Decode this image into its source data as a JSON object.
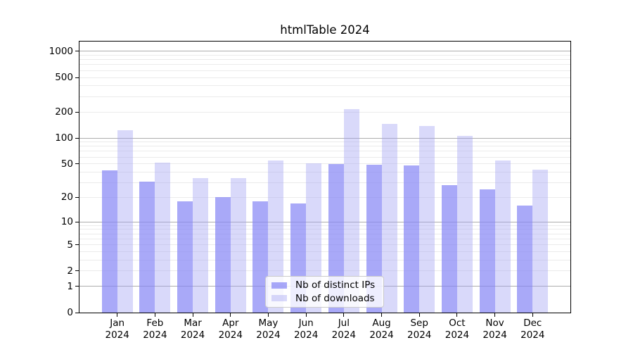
{
  "chart_data": {
    "type": "bar",
    "title": "htmlTable 2024",
    "categories": [
      "Jan",
      "Feb",
      "Mar",
      "Apr",
      "May",
      "Jun",
      "Jul",
      "Aug",
      "Sep",
      "Oct",
      "Nov",
      "Dec"
    ],
    "category_year": "2024",
    "series": [
      {
        "name": "Nb of distinct IPs",
        "color": "#8484f5",
        "alpha": 0.7,
        "values": [
          42,
          31,
          18,
          20,
          18,
          17,
          50,
          49,
          48,
          28,
          25,
          16
        ]
      },
      {
        "name": "Nb of downloads",
        "color": "#a0a0f2",
        "alpha": 0.4,
        "values": [
          123,
          52,
          34,
          34,
          55,
          51,
          215,
          146,
          137,
          105,
          55,
          43
        ]
      }
    ],
    "xlabel": "",
    "ylabel": "",
    "y_axis": {
      "scale": "log10(value+1)",
      "tick_labels": [
        0,
        1,
        2,
        5,
        10,
        20,
        50,
        100,
        200,
        500,
        1000
      ],
      "ylim": [
        0,
        1294
      ]
    },
    "grid": {
      "major_values": [
        1,
        10,
        100,
        1000
      ],
      "minor_values": [
        2,
        3,
        4,
        5,
        6,
        7,
        8,
        9,
        20,
        30,
        40,
        50,
        60,
        70,
        80,
        90,
        200,
        300,
        400,
        500,
        600,
        700,
        800,
        900
      ],
      "major_color": "#adadad",
      "minor_color": "#ebebeb"
    },
    "legend": {
      "position": "lower center"
    },
    "colors": {
      "background": "#ffffff",
      "axis": "#000000"
    }
  }
}
